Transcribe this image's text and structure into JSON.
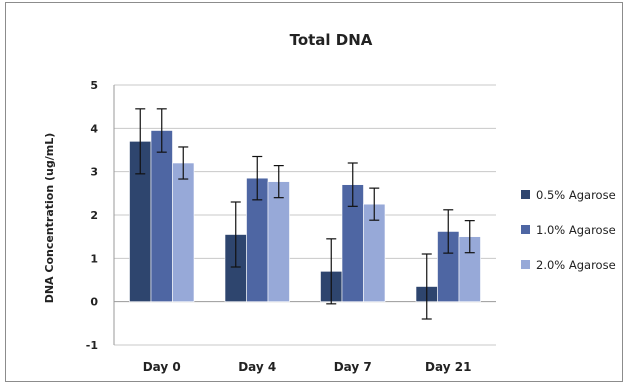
{
  "chart_data": {
    "type": "bar",
    "title": "Total DNA",
    "xlabel": "",
    "ylabel": "DNA Concentration (ug/mL)",
    "ylim": [
      -1,
      5
    ],
    "yticks": [
      -1,
      0,
      1,
      2,
      3,
      4,
      5
    ],
    "grid": true,
    "legend_position": "right",
    "categories": [
      "Day 0",
      "Day 4",
      "Day 7",
      "Day 21"
    ],
    "series": [
      {
        "name": "0.5% Agarose",
        "color": "#2e456e",
        "values": [
          3.7,
          1.55,
          0.7,
          0.35
        ],
        "errors": [
          0.75,
          0.75,
          0.75,
          0.75
        ]
      },
      {
        "name": "1.0% Agarose",
        "color": "#4e66a3",
        "values": [
          3.95,
          2.85,
          2.7,
          1.62
        ],
        "errors": [
          0.5,
          0.5,
          0.5,
          0.5
        ]
      },
      {
        "name": "2.0% Agarose",
        "color": "#97a9d8",
        "values": [
          3.2,
          2.77,
          2.25,
          1.5
        ],
        "errors": [
          0.37,
          0.37,
          0.37,
          0.37
        ]
      }
    ]
  }
}
